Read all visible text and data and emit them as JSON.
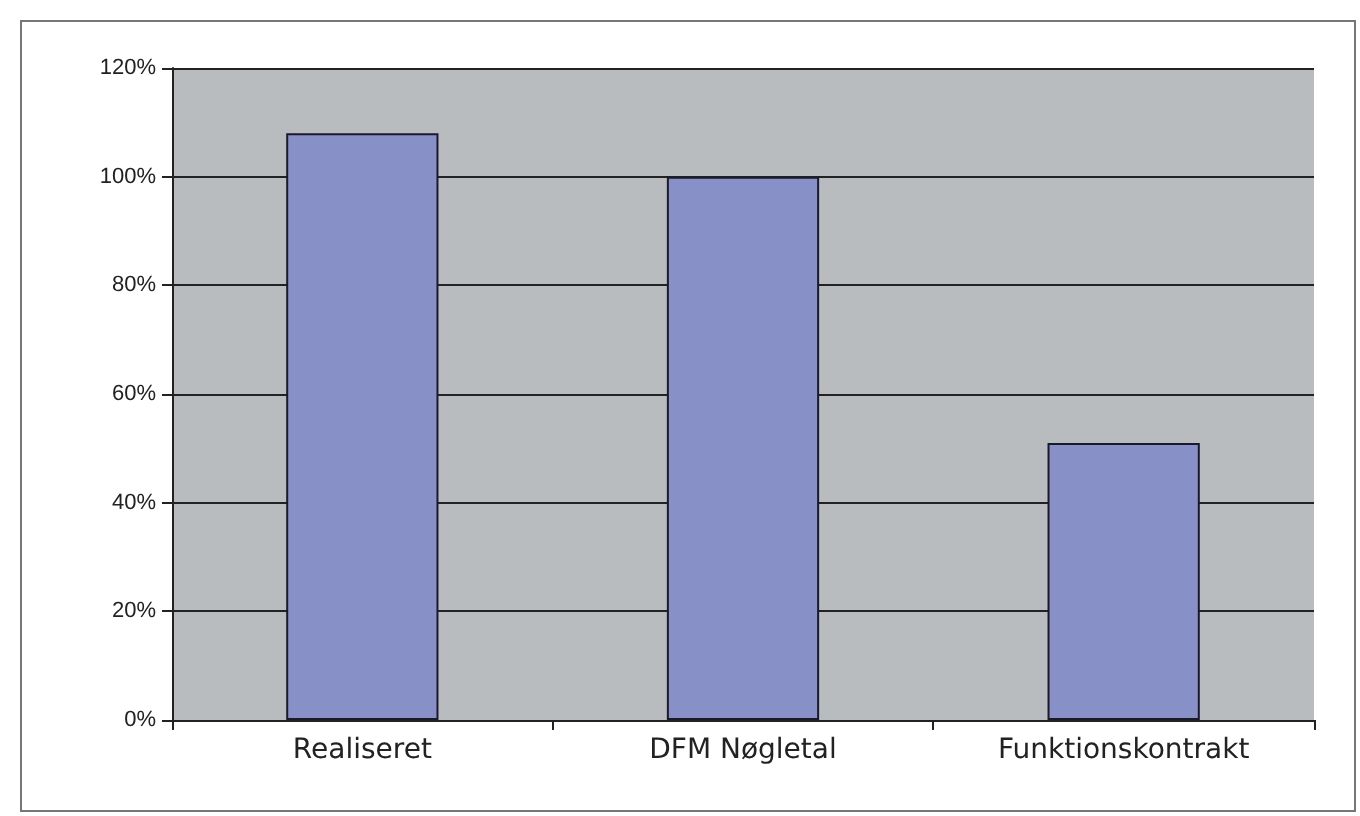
{
  "chart_data": {
    "type": "bar",
    "categories": [
      "Realiseret",
      "DFM Nøgletal",
      "Funktionskontrakt"
    ],
    "values": [
      108,
      100,
      51
    ],
    "color": "#8890c8",
    "ylim": [
      0,
      120
    ],
    "yticks": [
      {
        "value": 0,
        "label": "0%"
      },
      {
        "value": 20,
        "label": "20%"
      },
      {
        "value": 40,
        "label": "40%"
      },
      {
        "value": 60,
        "label": "60%"
      },
      {
        "value": 80,
        "label": "80%"
      },
      {
        "value": 100,
        "label": "100%"
      },
      {
        "value": 120,
        "label": "120%"
      }
    ],
    "grid": "y"
  }
}
